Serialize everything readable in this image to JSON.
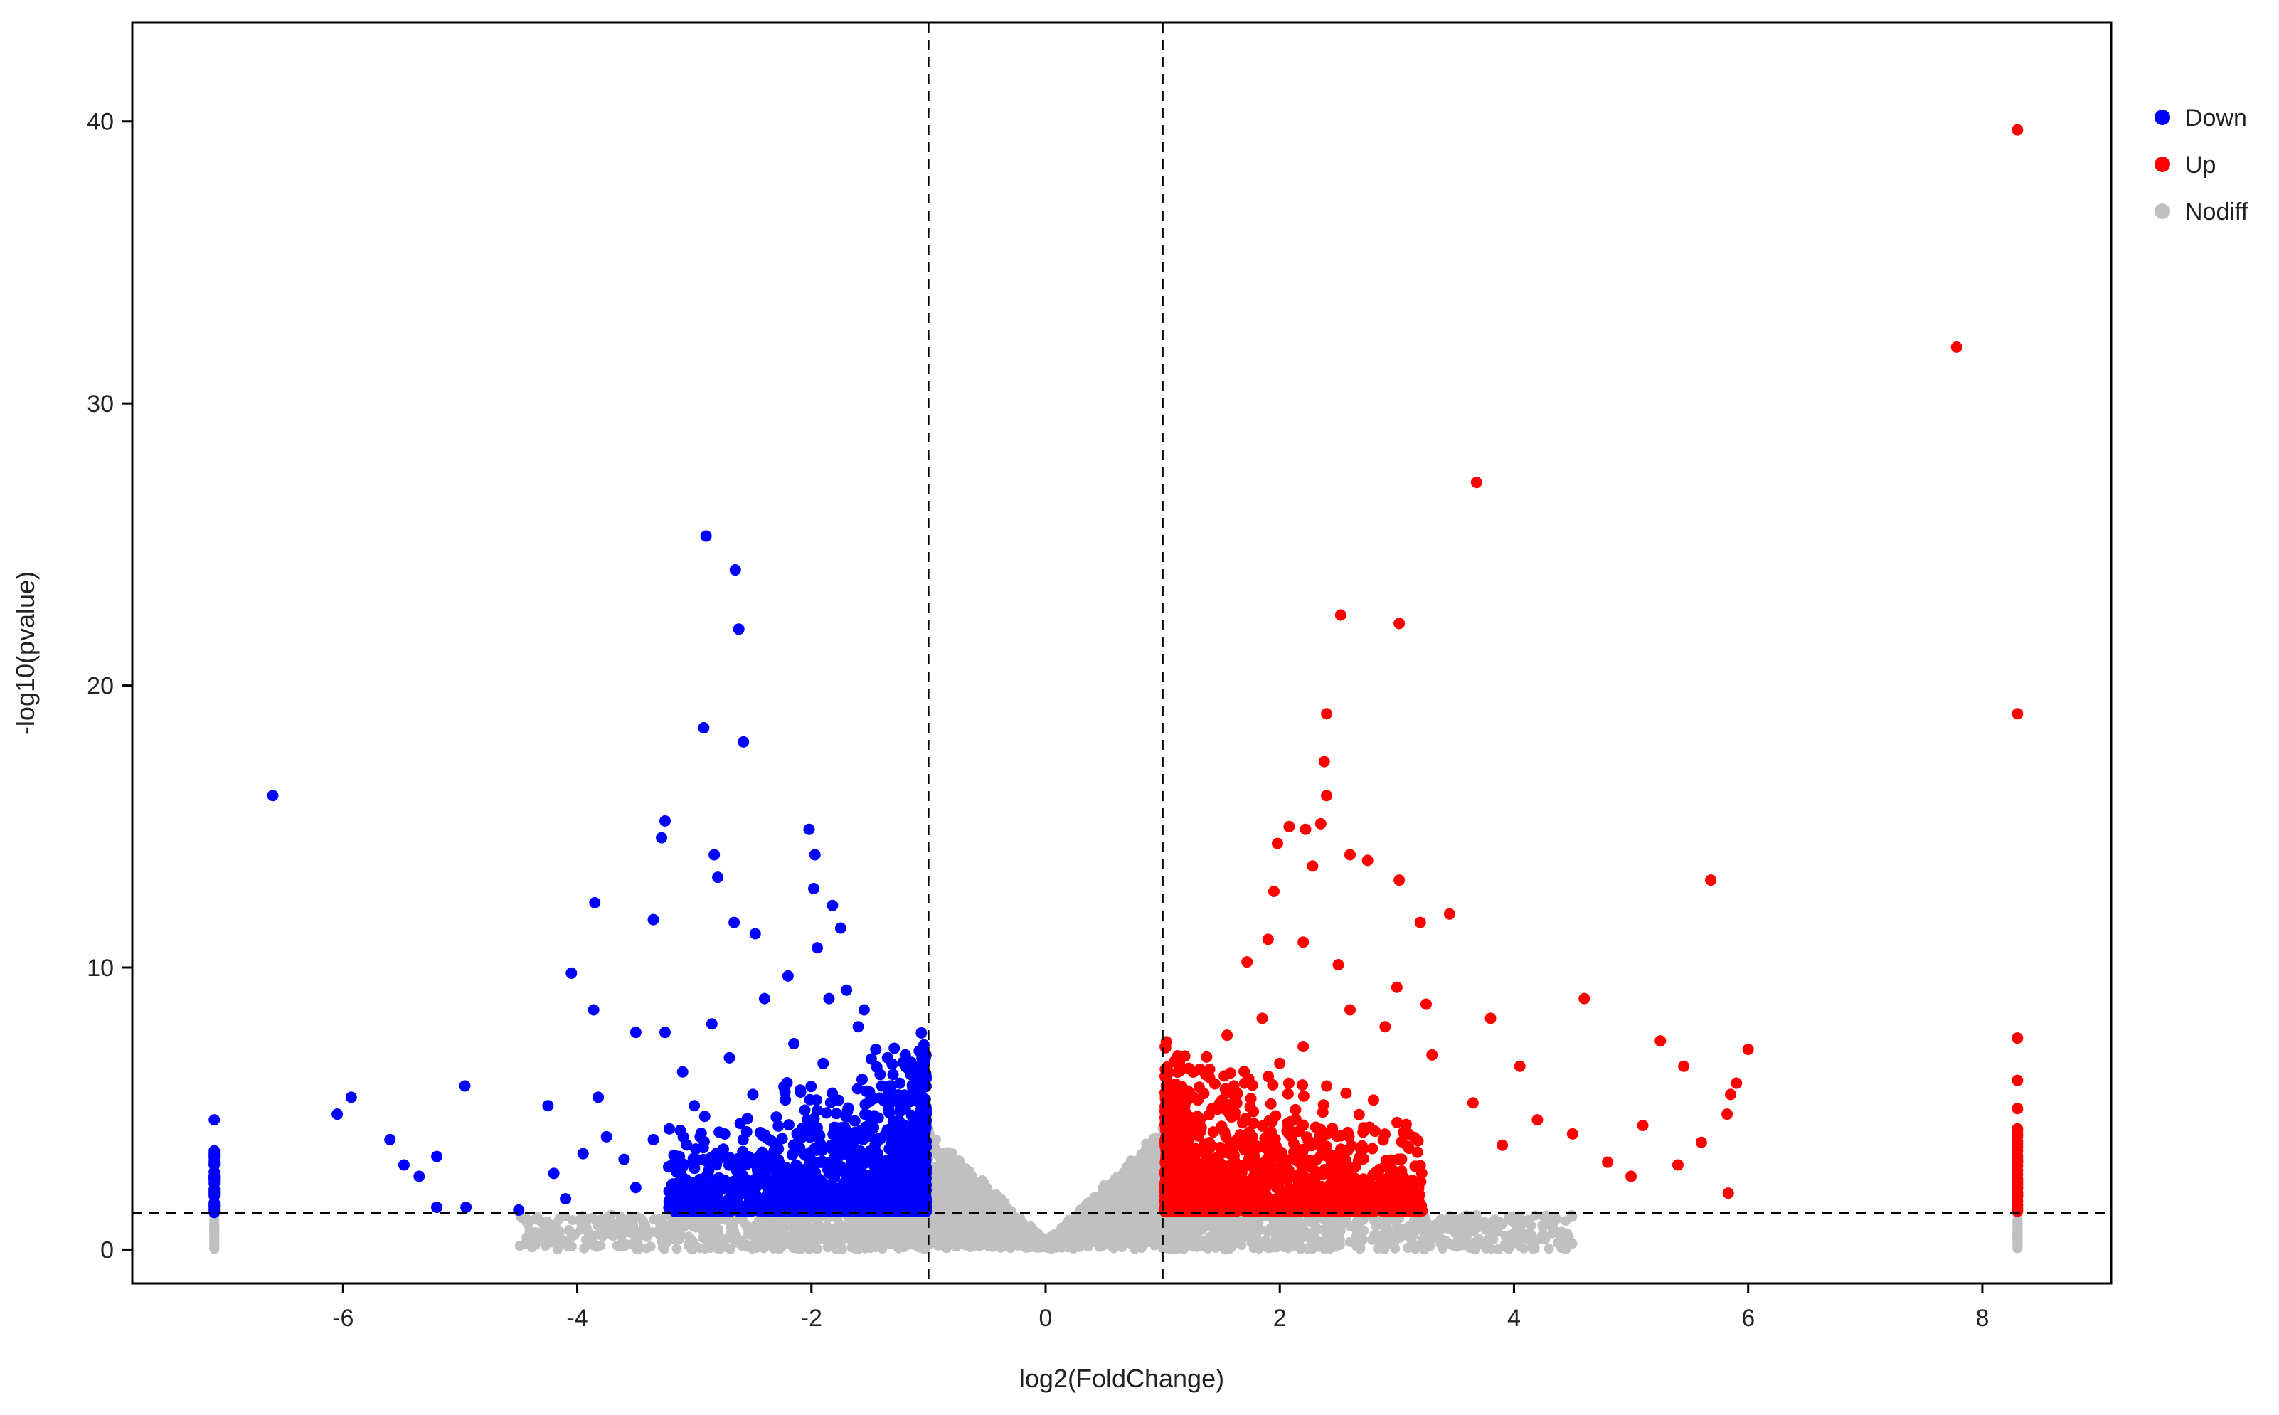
{
  "chart_data": {
    "type": "scatter",
    "title": "",
    "xlabel": "log2(FoldChange)",
    "ylabel": "-log10(pvalue)",
    "xlim": [
      -7.8,
      9.1
    ],
    "ylim": [
      -1.2,
      43.5
    ],
    "x_ticks": [
      -6,
      -4,
      -2,
      0,
      2,
      4,
      6,
      8
    ],
    "y_ticks": [
      0,
      10,
      20,
      30,
      40
    ],
    "thresholds": {
      "log2fc": [
        -1,
        1
      ],
      "neg_log10_pvalue": 1.3
    },
    "grid": false,
    "legend_position": "top-right",
    "series": [
      {
        "name": "Down",
        "color": "#0000ff",
        "points": [
          [
            -2.9,
            25.3
          ],
          [
            -2.65,
            24.1
          ],
          [
            -2.62,
            22.0
          ],
          [
            -2.92,
            18.5
          ],
          [
            -2.58,
            18.0
          ],
          [
            -6.6,
            16.1
          ],
          [
            -3.25,
            15.2
          ],
          [
            -3.28,
            14.6
          ],
          [
            -2.02,
            14.9
          ],
          [
            -1.97,
            14.0
          ],
          [
            -2.83,
            14.0
          ],
          [
            -2.8,
            13.2
          ],
          [
            -1.98,
            12.8
          ],
          [
            -1.82,
            12.2
          ],
          [
            -3.85,
            12.3
          ],
          [
            -3.35,
            11.7
          ],
          [
            -2.66,
            11.6
          ],
          [
            -2.48,
            11.2
          ],
          [
            -4.05,
            9.8
          ],
          [
            -3.86,
            8.5
          ],
          [
            -3.5,
            7.7
          ],
          [
            -3.25,
            7.7
          ],
          [
            -4.96,
            5.8
          ],
          [
            -5.93,
            5.4
          ],
          [
            -6.05,
            4.8
          ],
          [
            -5.6,
            3.9
          ],
          [
            -5.48,
            3.0
          ],
          [
            -5.35,
            2.6
          ],
          [
            -5.2,
            3.3
          ],
          [
            -5.2,
            1.5
          ],
          [
            -4.95,
            1.5
          ],
          [
            -4.5,
            1.4
          ],
          [
            -4.25,
            5.1
          ],
          [
            -4.2,
            2.7
          ],
          [
            -4.1,
            1.8
          ],
          [
            -3.95,
            3.4
          ],
          [
            -3.82,
            5.4
          ],
          [
            -3.75,
            4.0
          ],
          [
            -3.6,
            3.2
          ],
          [
            -3.5,
            2.2
          ],
          [
            -3.35,
            3.9
          ],
          [
            -3.1,
            6.3
          ],
          [
            -3.0,
            5.1
          ],
          [
            -2.95,
            4.0
          ],
          [
            -2.85,
            8.0
          ],
          [
            -2.7,
            6.8
          ],
          [
            -2.5,
            5.5
          ],
          [
            -2.4,
            8.9
          ],
          [
            -2.3,
            4.7
          ],
          [
            -2.2,
            9.7
          ],
          [
            -2.15,
            7.3
          ],
          [
            -2.1,
            3.6
          ],
          [
            -1.95,
            10.7
          ],
          [
            -1.9,
            6.6
          ],
          [
            -1.85,
            8.9
          ],
          [
            -1.75,
            11.4
          ],
          [
            -1.7,
            9.2
          ],
          [
            -1.6,
            7.9
          ],
          [
            -1.55,
            8.5
          ],
          [
            -1.45,
            7.1
          ],
          [
            -1.4,
            5.8
          ],
          [
            -1.35,
            6.8
          ],
          [
            -1.25,
            5.2
          ],
          [
            -1.2,
            4.4
          ],
          [
            -1.12,
            3.3
          ],
          [
            -1.05,
            2.4
          ],
          [
            -1.05,
            1.6
          ],
          [
            -7.1,
            4.6
          ],
          [
            -7.1,
            3.5
          ],
          [
            -7.1,
            3.0
          ],
          [
            -7.1,
            2.5
          ],
          [
            -7.1,
            2.0
          ],
          [
            -7.1,
            1.6
          ]
        ]
      },
      {
        "name": "Up",
        "color": "#ff0000",
        "points": [
          [
            8.3,
            39.7
          ],
          [
            7.78,
            32.0
          ],
          [
            3.68,
            27.2
          ],
          [
            2.52,
            22.5
          ],
          [
            3.02,
            22.2
          ],
          [
            2.4,
            19.0
          ],
          [
            8.3,
            19.0
          ],
          [
            2.38,
            17.3
          ],
          [
            2.4,
            16.1
          ],
          [
            2.35,
            15.1
          ],
          [
            2.08,
            15.0
          ],
          [
            2.22,
            14.9
          ],
          [
            2.6,
            14.0
          ],
          [
            2.75,
            13.8
          ],
          [
            1.98,
            14.4
          ],
          [
            2.28,
            13.6
          ],
          [
            3.02,
            13.1
          ],
          [
            5.68,
            13.1
          ],
          [
            3.45,
            11.9
          ],
          [
            3.2,
            11.6
          ],
          [
            1.95,
            12.7
          ],
          [
            1.9,
            11.0
          ],
          [
            1.72,
            10.2
          ],
          [
            2.2,
            10.9
          ],
          [
            2.5,
            10.1
          ],
          [
            3.0,
            9.3
          ],
          [
            3.25,
            8.7
          ],
          [
            3.8,
            8.2
          ],
          [
            4.6,
            8.9
          ],
          [
            5.25,
            7.4
          ],
          [
            5.45,
            6.5
          ],
          [
            6.0,
            7.1
          ],
          [
            5.9,
            5.9
          ],
          [
            5.85,
            5.5
          ],
          [
            5.82,
            4.8
          ],
          [
            5.6,
            3.8
          ],
          [
            5.4,
            3.0
          ],
          [
            5.1,
            4.4
          ],
          [
            5.0,
            2.6
          ],
          [
            4.8,
            3.1
          ],
          [
            4.5,
            4.1
          ],
          [
            4.2,
            4.6
          ],
          [
            4.05,
            6.5
          ],
          [
            3.9,
            3.7
          ],
          [
            3.65,
            5.2
          ],
          [
            3.3,
            6.9
          ],
          [
            3.1,
            4.1
          ],
          [
            2.9,
            7.9
          ],
          [
            2.8,
            5.3
          ],
          [
            2.6,
            8.5
          ],
          [
            2.4,
            5.8
          ],
          [
            2.2,
            7.2
          ],
          [
            2.0,
            6.6
          ],
          [
            1.85,
            8.2
          ],
          [
            1.7,
            5.9
          ],
          [
            1.55,
            7.6
          ],
          [
            1.4,
            6.1
          ],
          [
            1.3,
            5.3
          ],
          [
            1.2,
            4.6
          ],
          [
            1.12,
            3.4
          ],
          [
            1.05,
            2.3
          ],
          [
            1.05,
            1.6
          ],
          [
            5.83,
            2.0
          ],
          [
            8.3,
            7.5
          ],
          [
            8.3,
            6.0
          ],
          [
            8.3,
            5.0
          ],
          [
            8.3,
            4.2
          ],
          [
            8.3,
            3.5
          ],
          [
            8.3,
            2.8
          ],
          [
            8.3,
            2.2
          ],
          [
            8.3,
            1.6
          ]
        ]
      },
      {
        "name": "Nodiff",
        "color": "#c0c0c0",
        "points": []
      }
    ]
  }
}
